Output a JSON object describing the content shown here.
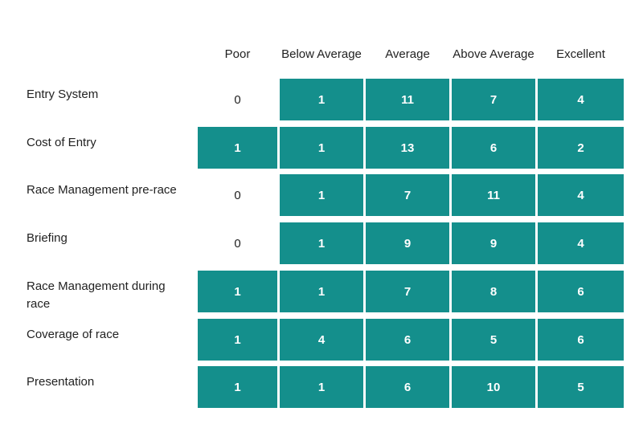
{
  "colors": {
    "filled": "#148f8c",
    "filled_text": "#ffffff",
    "empty_text": "#222222"
  },
  "chart_data": {
    "type": "table",
    "title": "",
    "columns": [
      "Poor",
      "Below Average",
      "Average",
      "Above Average",
      "Excellent"
    ],
    "rows": [
      {
        "label": "Entry System",
        "values": [
          0,
          1,
          11,
          7,
          4
        ]
      },
      {
        "label": "Cost of Entry",
        "values": [
          1,
          1,
          13,
          6,
          2
        ]
      },
      {
        "label": "Race Management pre-race",
        "values": [
          0,
          1,
          7,
          11,
          4
        ]
      },
      {
        "label": "Briefing",
        "values": [
          0,
          1,
          9,
          9,
          4
        ]
      },
      {
        "label": "Race Management during race",
        "values": [
          1,
          1,
          7,
          8,
          6
        ]
      },
      {
        "label": "Coverage of race",
        "values": [
          1,
          4,
          6,
          5,
          6
        ]
      },
      {
        "label": "Presentation",
        "values": [
          1,
          1,
          6,
          10,
          5
        ]
      }
    ]
  }
}
